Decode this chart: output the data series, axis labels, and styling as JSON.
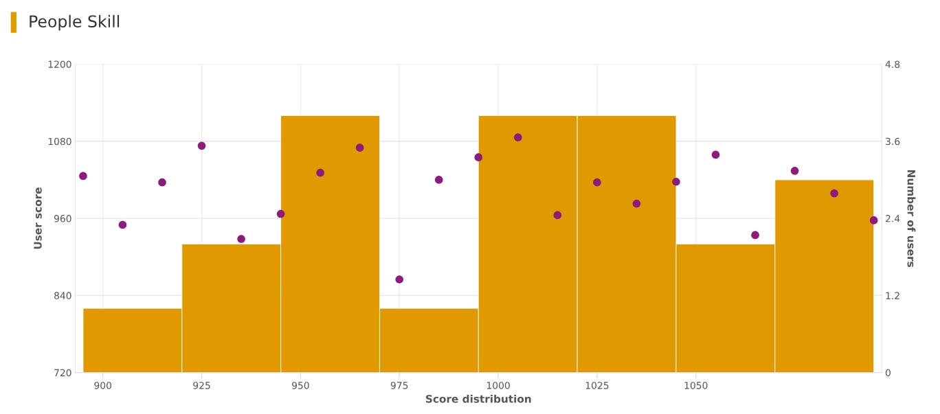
{
  "chart_data": {
    "type": "histogram",
    "title": "People Skill",
    "xlabel": "Score distribution",
    "ylabel": "User score",
    "y2label": "Number of users",
    "xlim": [
      893,
      1097
    ],
    "xticks": [
      900,
      925,
      950,
      975,
      1000,
      1025,
      1050
    ],
    "ylim": [
      720,
      1200
    ],
    "yticks": [
      720,
      840,
      960,
      1080,
      1200
    ],
    "y2lim": [
      0,
      4.8
    ],
    "y2ticks": [
      0,
      1.2,
      2.4,
      3.6,
      4.8
    ],
    "grid": true,
    "marker": "circle",
    "series": [
      {
        "axis": "y2",
        "color": "#e09a00",
        "bins": [
          895,
          920,
          945,
          970,
          995,
          1020,
          1045,
          1070,
          1095
        ],
        "values": [
          1,
          2,
          4,
          1,
          4,
          4,
          2,
          3
        ]
      },
      {
        "type": "scatter",
        "color": "#8e1a7e",
        "x": [
          895,
          905,
          915,
          925,
          935,
          945,
          955,
          965,
          975,
          985,
          995,
          1005,
          1015,
          1025,
          1035,
          1045,
          1055,
          1065,
          1075,
          1085,
          1095
        ],
        "values": [
          1026,
          950,
          1016,
          1073,
          928,
          967,
          1031,
          1070,
          865,
          1020,
          1055,
          1086,
          965,
          1016,
          983,
          1017,
          1059,
          934,
          1034,
          999,
          957
        ]
      }
    ]
  }
}
